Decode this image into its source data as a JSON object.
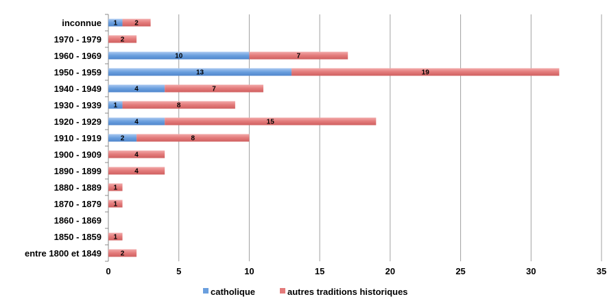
{
  "chart_data": {
    "type": "bar",
    "orientation": "horizontal",
    "stacked": true,
    "categories": [
      "inconnue",
      "1970 - 1979",
      "1960 - 1969",
      "1950 - 1959",
      "1940 - 1949",
      "1930 - 1939",
      "1920 - 1929",
      "1910 - 1919",
      "1900 - 1909",
      "1890 - 1899",
      "1880 - 1889",
      "1870 - 1879",
      "1860 - 1869",
      "1850 - 1859",
      "entre 1800 et 1849"
    ],
    "series": [
      {
        "name": "catholique",
        "color": "#6a9fde",
        "values": [
          1,
          0,
          10,
          13,
          4,
          1,
          4,
          2,
          0,
          0,
          0,
          0,
          0,
          0,
          0
        ]
      },
      {
        "name": "autres traditions historiques",
        "color": "#e37a7a",
        "values": [
          2,
          2,
          7,
          19,
          7,
          8,
          15,
          8,
          4,
          4,
          1,
          1,
          0,
          1,
          2
        ]
      }
    ],
    "xlim": [
      0,
      35
    ],
    "xticks": [
      0,
      5,
      10,
      15,
      20,
      25,
      30,
      35
    ],
    "grid": "vertical",
    "legend": "bottom",
    "title": "",
    "xlabel": "",
    "ylabel": ""
  }
}
